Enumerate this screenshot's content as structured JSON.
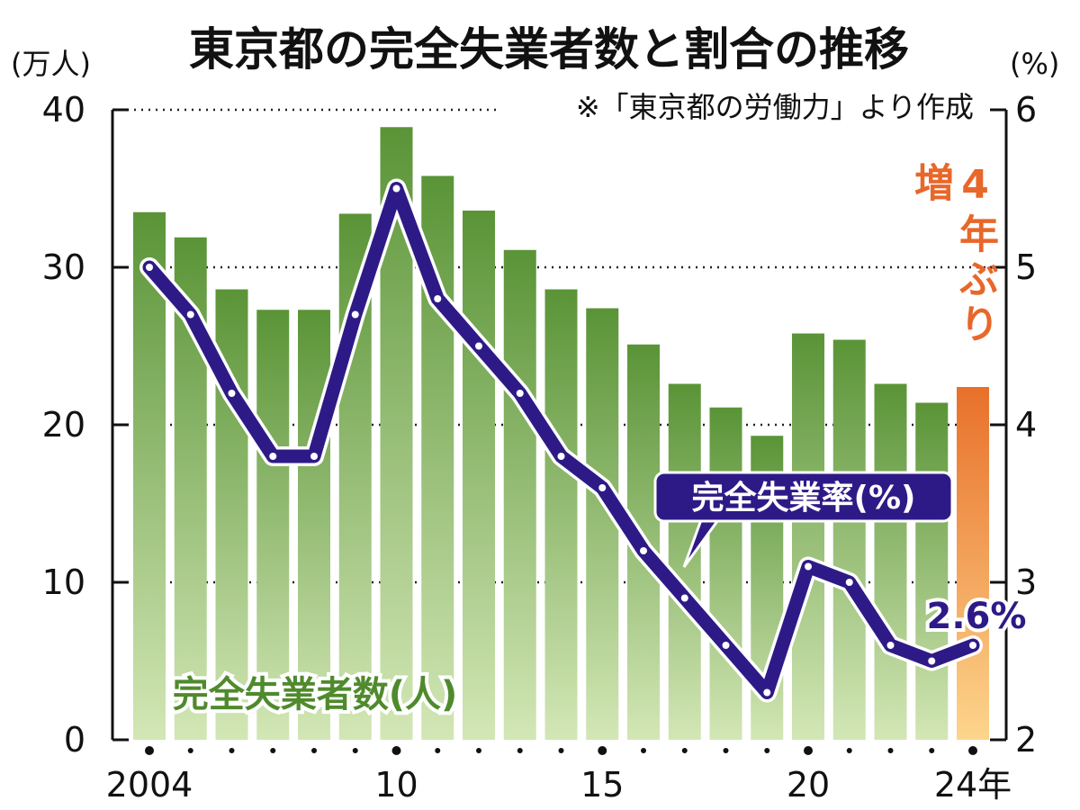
{
  "chart_data": {
    "type": "bar+line",
    "title": "東京都の完全失業者数と割合の推移",
    "source_note": "※「東京都の労働力」より作成",
    "left_axis": {
      "unit_label": "(万人)",
      "ylim": [
        0,
        40
      ],
      "ticks": [
        "0",
        "10",
        "20",
        "30",
        "40"
      ]
    },
    "right_axis": {
      "unit_label": "(%)",
      "ylim": [
        2,
        6
      ],
      "ticks": [
        "2",
        "3",
        "4",
        "5",
        "6"
      ]
    },
    "x_tick_labels": [
      {
        "year": 2004,
        "label": "2004"
      },
      {
        "year": 2010,
        "label": "10"
      },
      {
        "year": 2015,
        "label": "15"
      },
      {
        "year": 2020,
        "label": "20"
      },
      {
        "year": 2024,
        "label": "24年"
      }
    ],
    "years": [
      2004,
      2005,
      2006,
      2007,
      2008,
      2009,
      2010,
      2011,
      2012,
      2013,
      2014,
      2015,
      2016,
      2017,
      2018,
      2019,
      2020,
      2021,
      2022,
      2023,
      2024
    ],
    "series": [
      {
        "name": "完全失業者数(人)",
        "type": "bar",
        "axis": "left",
        "values": [
          33.5,
          31.9,
          28.6,
          27.3,
          27.3,
          33.4,
          38.9,
          35.8,
          33.6,
          31.1,
          28.6,
          27.4,
          25.1,
          22.6,
          21.1,
          19.3,
          25.8,
          25.4,
          22.6,
          21.4,
          22.4
        ]
      },
      {
        "name": "完全失業率(%)",
        "type": "line",
        "axis": "right",
        "values": [
          5.0,
          4.7,
          4.2,
          3.8,
          3.8,
          4.7,
          5.5,
          4.8,
          4.5,
          4.2,
          3.8,
          3.6,
          3.2,
          2.9,
          2.6,
          2.3,
          3.1,
          3.0,
          2.6,
          2.5,
          2.6
        ]
      }
    ],
    "annotations": {
      "highlight": "4年ぶり増",
      "last_value_label": "2.6%"
    },
    "grid": "dotted horizontal",
    "colors": {
      "bar_top": "#5a9437",
      "bar_bottom": "#d3e7b6",
      "highlight_top": "#e8702a",
      "highlight_bottom": "#fdd58c",
      "line": "#2e1a87",
      "bar_label": "#4f8a2c",
      "highlight_text": "#e8672a"
    }
  }
}
